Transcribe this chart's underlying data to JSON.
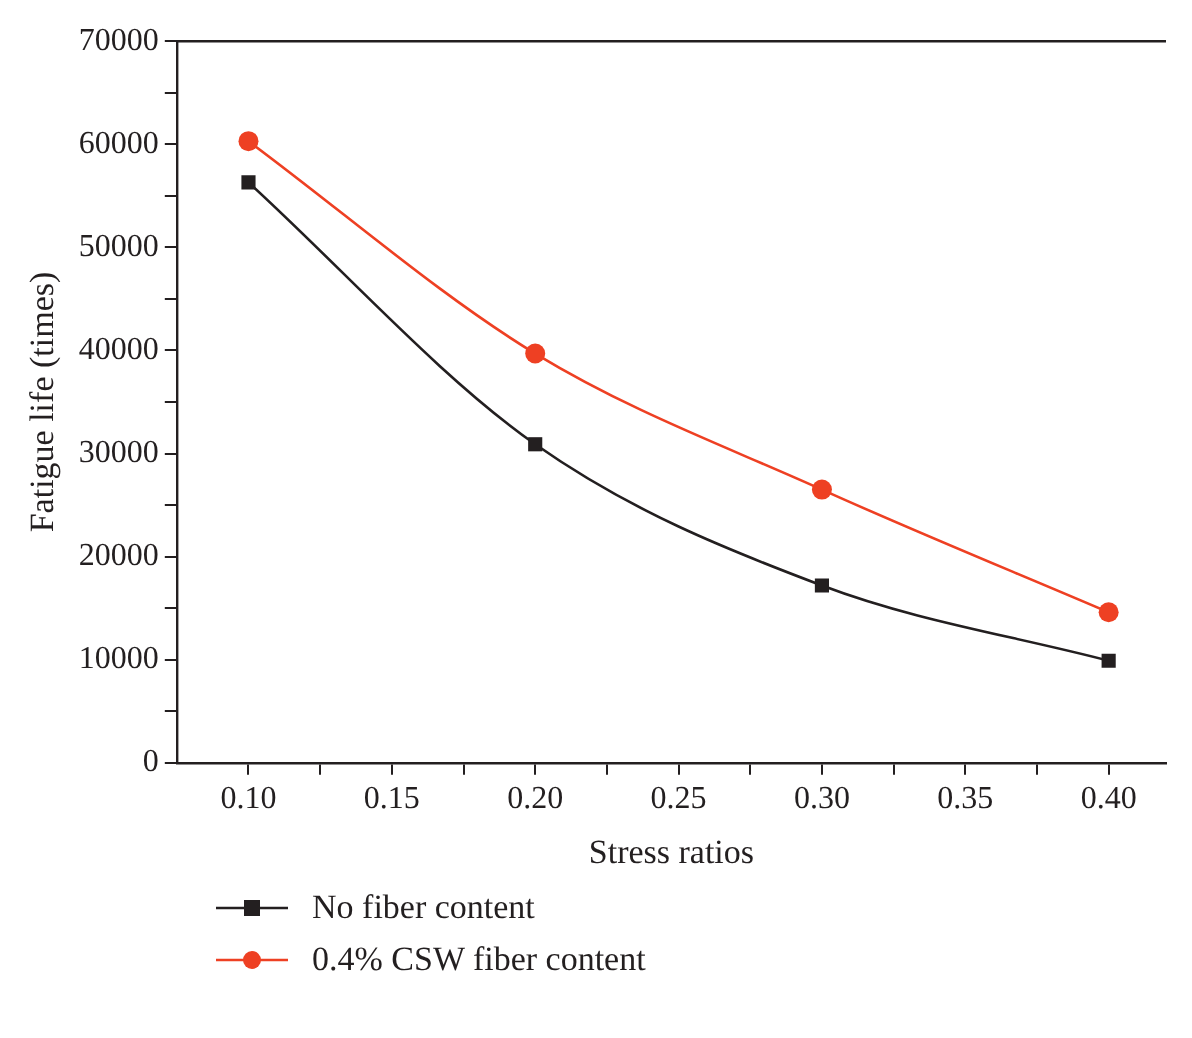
{
  "chart_data": {
    "type": "line",
    "xlabel": "Stress ratios",
    "ylabel": "Fatigue life (times)",
    "x": [
      0.1,
      0.2,
      0.3,
      0.4
    ],
    "series": [
      {
        "name": "No fiber content",
        "color": "#231f20",
        "marker": "square",
        "values": [
          56300,
          30900,
          17200,
          9900
        ]
      },
      {
        "name": "0.4% CSW fiber content",
        "color": "#ee4023",
        "marker": "circle",
        "values": [
          60300,
          39700,
          26500,
          14600
        ]
      }
    ],
    "xlim": [
      0.075,
      0.42
    ],
    "xticks": [
      {
        "value": 0.1,
        "label": "0.10"
      },
      {
        "value": 0.125,
        "label": null
      },
      {
        "value": 0.15,
        "label": "0.15"
      },
      {
        "value": 0.175,
        "label": null
      },
      {
        "value": 0.2,
        "label": "0.20"
      },
      {
        "value": 0.225,
        "label": null
      },
      {
        "value": 0.25,
        "label": "0.25"
      },
      {
        "value": 0.275,
        "label": null
      },
      {
        "value": 0.3,
        "label": "0.30"
      },
      {
        "value": 0.325,
        "label": null
      },
      {
        "value": 0.35,
        "label": "0.35"
      },
      {
        "value": 0.375,
        "label": null
      },
      {
        "value": 0.4,
        "label": "0.40"
      }
    ],
    "ylim": [
      0,
      70000
    ],
    "yticks": [
      0,
      {
        "value": 5000,
        "label": null
      },
      10000,
      {
        "value": 15000,
        "label": null
      },
      20000,
      {
        "value": 25000,
        "label": null
      },
      30000,
      {
        "value": 35000,
        "label": null
      },
      40000,
      {
        "value": 45000,
        "label": null
      },
      50000,
      {
        "value": 55000,
        "label": null
      },
      60000,
      {
        "value": 65000,
        "label": null
      },
      70000
    ],
    "grid": false,
    "legend": "bottom",
    "line_style": "solid"
  }
}
